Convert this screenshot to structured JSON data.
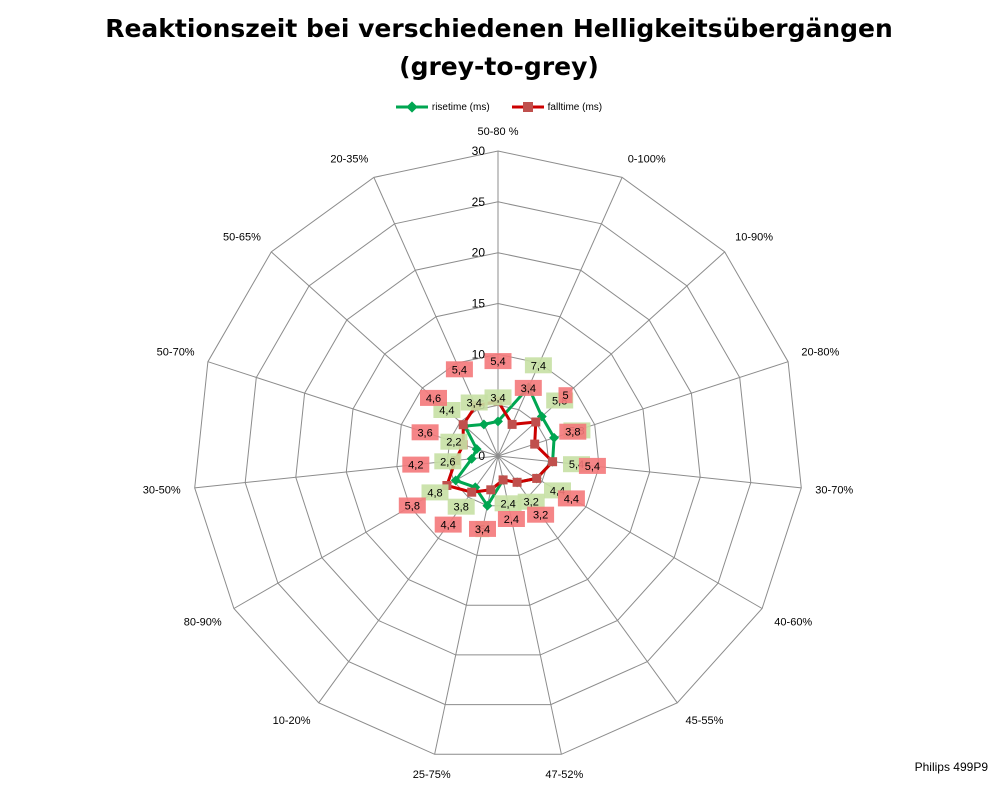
{
  "chart_data": {
    "type": "radar",
    "title_lines": [
      "Reaktionszeit bei verschiedenen Helligkeitsübergängen",
      "(grey-to-grey)"
    ],
    "categories": [
      "50-80 %",
      "0-100%",
      "10-90%",
      "20-80%",
      "30-70%",
      "40-60%",
      "45-55%",
      "47-52%",
      "25-75%",
      "10-20%",
      "80-90%",
      "30-50%",
      "50-70%",
      "50-65%",
      "20-35%"
    ],
    "radial_ticks": [
      0,
      5,
      10,
      15,
      20,
      25,
      30
    ],
    "rlim": [
      0,
      30
    ],
    "legend_position": "top",
    "series": [
      {
        "name": "risetime (ms)",
        "color": "#00a651",
        "label_bg": "#c6e0a4",
        "values": [
          3.4,
          7.4,
          5.8,
          5.8,
          5.4,
          4.4,
          3.2,
          2.4,
          5,
          3.8,
          4.8,
          2.6,
          2.2,
          4.4,
          3.4
        ],
        "labels": [
          "3,4",
          "7,4",
          "5,8",
          "5,8",
          "5,4",
          "4,4",
          "3,2",
          "2,4",
          "5",
          "3,8",
          "4,8",
          "2,6",
          "2,2",
          "4,4",
          "3,4"
        ]
      },
      {
        "name": "falltime (ms)",
        "color": "#cc0000",
        "marker_color": "#c0504d",
        "label_bg": "#f4787a",
        "values": [
          5.4,
          3.4,
          5,
          3.8,
          5.4,
          4.4,
          3.2,
          2.4,
          3.4,
          4.4,
          5.8,
          4.2,
          3.6,
          4.6,
          5.4
        ],
        "labels": [
          "5,4",
          "3,4",
          "5",
          "3,8",
          "5,4",
          "4,4",
          "3,2",
          "2,4",
          "3,4",
          "4,4",
          "5,8",
          "4,2",
          "3,6",
          "4,6",
          "5,4"
        ]
      }
    ]
  },
  "footer_label": "Philips 499P9"
}
